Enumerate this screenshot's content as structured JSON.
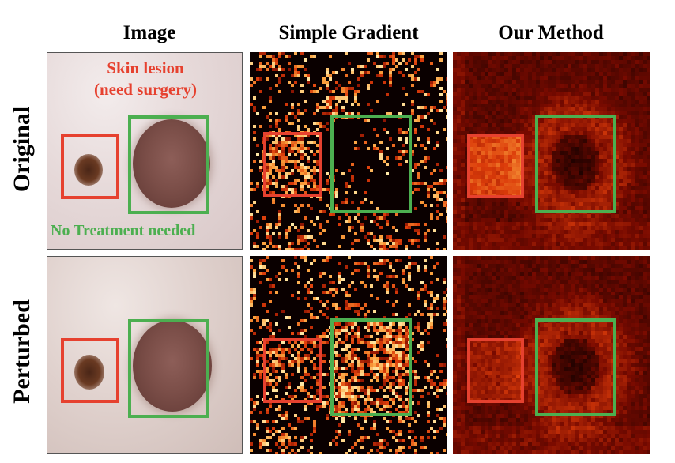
{
  "columns": [
    "Image",
    "Simple Gradient",
    "Our Method"
  ],
  "rows": [
    "Original",
    "Perturbed"
  ],
  "annotations": {
    "lesion_line1": "Skin lesion",
    "lesion_line2": "(need surgery)",
    "no_treatment": "No Treatment needed"
  },
  "colors": {
    "lesion_box": "#e6412f",
    "no_treatment_box": "#4caf50",
    "heat_background": "#0a0000",
    "heat_hot": "#ffe08a"
  }
}
